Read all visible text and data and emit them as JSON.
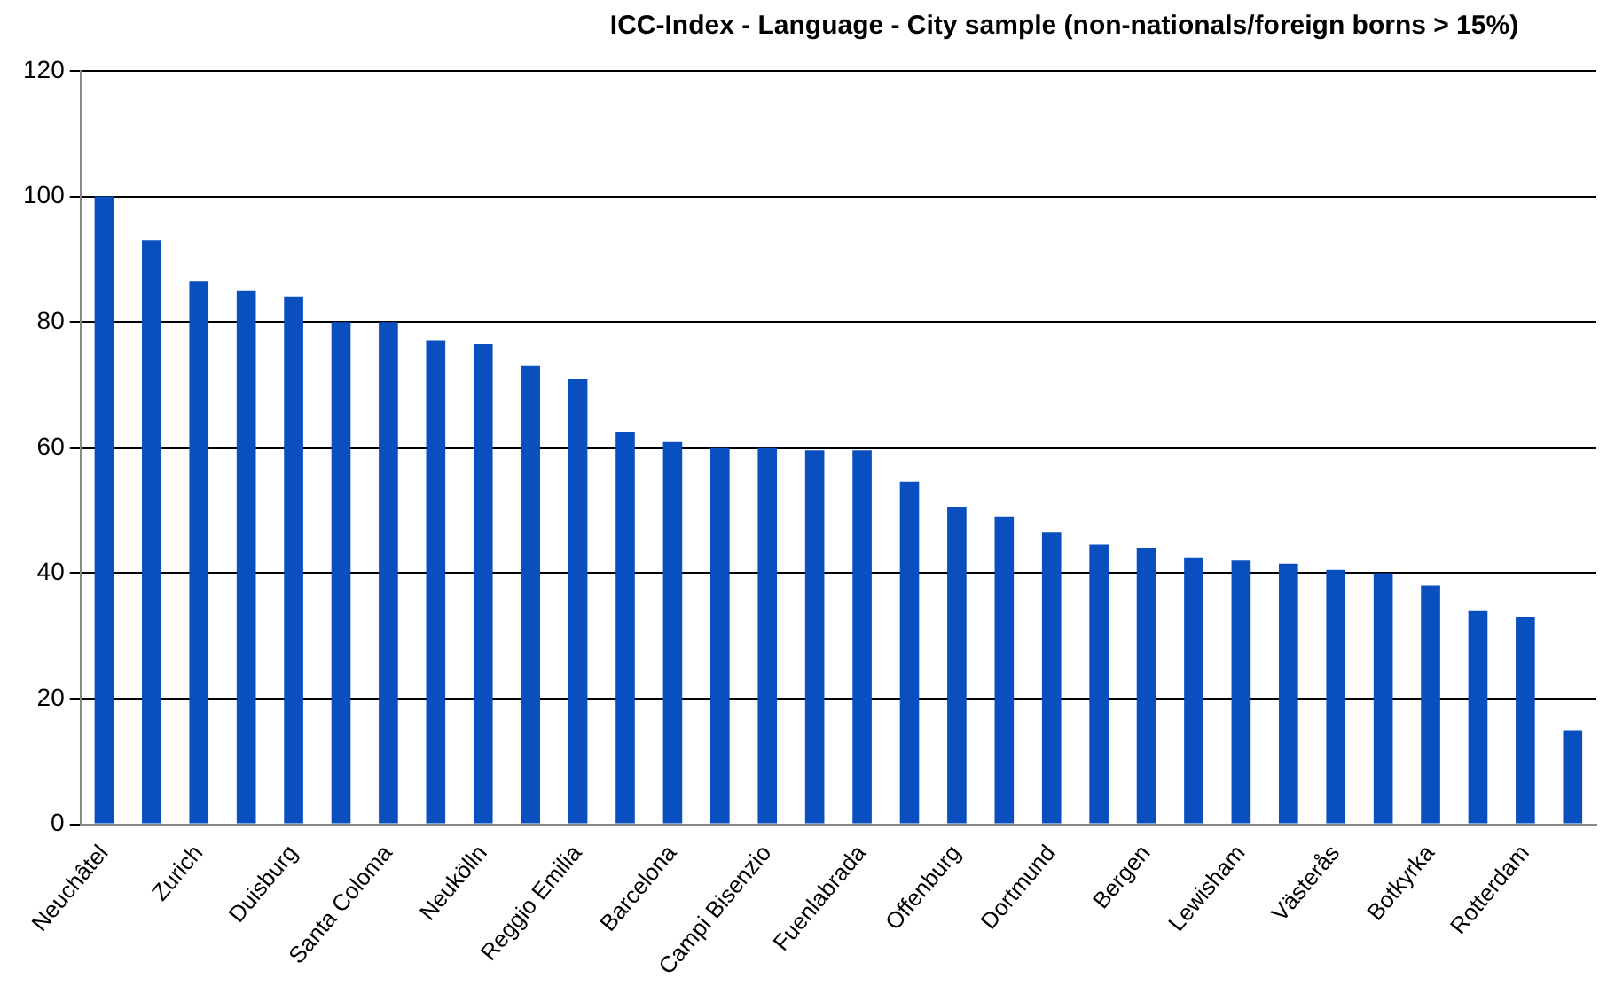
{
  "chart_data": {
    "type": "bar",
    "title": "ICC-Index - Language - City sample (non-nationals/foreign borns > 15%)",
    "categories": [
      "Neuchâtel",
      null,
      "Zurich",
      null,
      "Duisburg",
      null,
      "Santa Coloma",
      null,
      "Neukölln",
      null,
      "Reggio Emilia",
      null,
      "Barcelona",
      null,
      "Campi Bisenzio",
      null,
      "Fuenlabrada",
      null,
      "Offenburg",
      null,
      "Dortmund",
      null,
      "Bergen",
      null,
      "Lewisham",
      null,
      "Västerås",
      null,
      "Botkyrka",
      null,
      "Rotterdam",
      null
    ],
    "values": [
      100,
      93,
      86.5,
      85,
      84,
      80,
      80,
      77,
      76.5,
      73,
      71,
      62.5,
      61,
      60,
      60,
      59.5,
      59.5,
      54.5,
      50.5,
      49,
      46.5,
      44.5,
      44,
      42.5,
      42,
      41.5,
      40.5,
      40,
      38,
      34,
      33,
      15
    ],
    "color": "#0a4fbf",
    "ylim": [
      0,
      120
    ],
    "yticks": [
      0,
      20,
      40,
      60,
      80,
      100,
      120
    ],
    "grid": "y"
  }
}
